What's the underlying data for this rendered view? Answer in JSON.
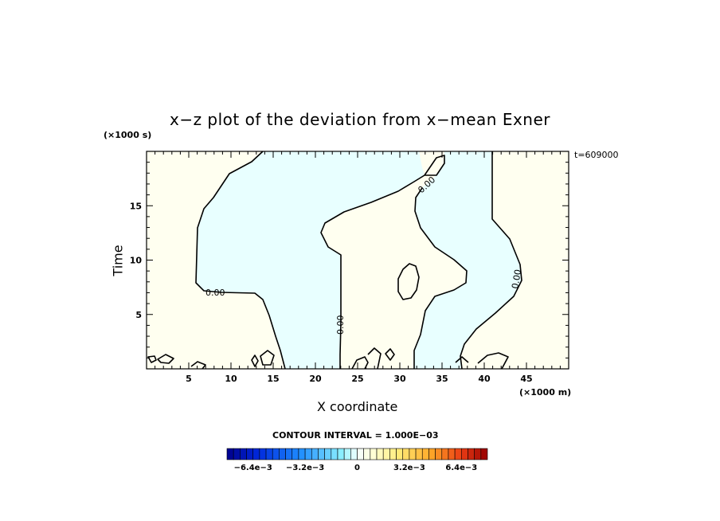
{
  "chart_data": {
    "type": "contour",
    "title": "x−z plot of the deviation from x−mean Exner",
    "xlabel": "X coordinate",
    "ylabel": "Time",
    "x_multiplier": "(×1000 m)",
    "y_multiplier": "(×1000 s)",
    "time_stamp": "t=609000",
    "xlim": [
      0,
      50
    ],
    "ylim": [
      0,
      20
    ],
    "x_ticks": [
      5,
      10,
      15,
      20,
      25,
      30,
      35,
      40,
      45
    ],
    "y_ticks": [
      5,
      10,
      15
    ],
    "contour_level_label": "0.00",
    "contour_interval_text": "CONTOUR INTERVAL = 1.000E−03",
    "colorbar": {
      "min": -0.008,
      "max": 0.008,
      "step": 0.0004,
      "tick_labels": [
        "−6.4e−3",
        "−3.2e−3",
        "0",
        "3.2e−3",
        "6.4e−3"
      ],
      "tick_values": [
        -0.0064,
        -0.0032,
        0,
        0.0032,
        0.0064
      ]
    },
    "colors": {
      "positive_fill": "#fffff0",
      "negative_fill": "#e8ffff"
    }
  }
}
